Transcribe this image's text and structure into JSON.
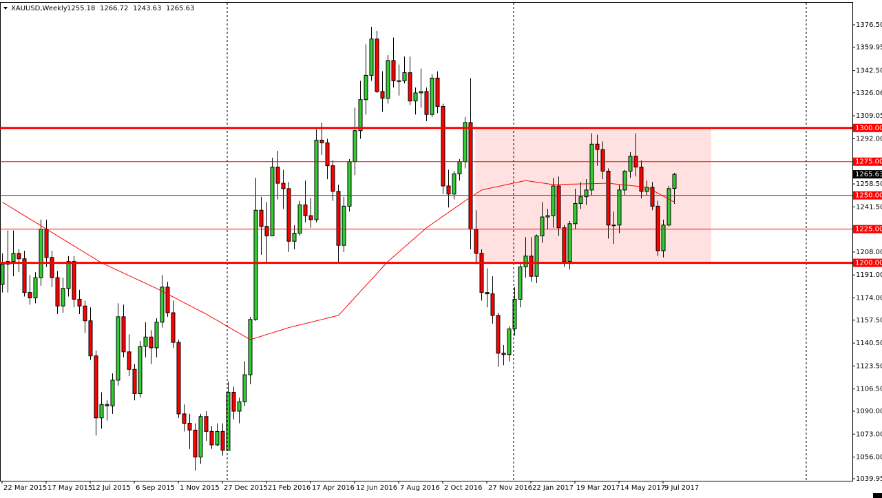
{
  "chart_data": {
    "type": "candlestick",
    "title": "XAUUSD,Weekly",
    "categories": [
      "22 Mar 2015",
      null,
      null,
      null,
      null,
      null,
      null,
      null,
      "17 May 2015",
      null,
      null,
      null,
      null,
      null,
      null,
      null,
      "12 Jul 2015",
      null,
      null,
      null,
      null,
      null,
      null,
      null,
      "6 Sep 2015",
      null,
      null,
      null,
      null,
      null,
      null,
      null,
      "1 Nov 2015",
      null,
      null,
      null,
      null,
      null,
      null,
      null,
      "27 Dec 2015",
      null,
      null,
      null,
      null,
      null,
      null,
      null,
      "21 Feb 2016",
      null,
      null,
      null,
      null,
      null,
      null,
      null,
      "17 Apr 2016",
      null,
      null,
      null,
      null,
      null,
      null,
      null,
      "12 Jun 2016",
      null,
      null,
      null,
      null,
      null,
      null,
      null,
      "7 Aug 2016",
      null,
      null,
      null,
      null,
      null,
      null,
      null,
      "2 Oct 2016",
      null,
      null,
      null,
      null,
      null,
      null,
      null,
      "27 Nov 2016",
      null,
      null,
      null,
      null,
      null,
      null,
      null,
      "22 Jan 2017",
      null,
      null,
      null,
      null,
      null,
      null,
      null,
      "19 Mar 2017",
      null,
      null,
      null,
      null,
      null,
      null,
      null,
      "14 May 2017",
      null,
      null,
      null,
      null,
      null,
      null,
      null,
      "9 Jul 2017",
      null,
      null
    ],
    "open": [
      1184,
      1199,
      1201,
      1207,
      1203,
      1178,
      1174,
      1189,
      1225,
      1204,
      1189,
      1168,
      1181,
      1201,
      1173,
      1168,
      1157,
      1131,
      1085,
      1095,
      1094,
      1113,
      1160,
      1134,
      1121,
      1103,
      1138,
      1145,
      1137,
      1156,
      1182,
      1163,
      1141,
      1088,
      1081,
      1076,
      1056,
      1086,
      1075,
      1065,
      1075,
      1061,
      1104,
      1090,
      1097,
      1117,
      1158,
      1239,
      1227,
      1220,
      1271,
      1259,
      1255,
      1216,
      1222,
      1243,
      1235,
      1232,
      1291,
      1289,
      1272,
      1253,
      1213,
      1242,
      1275,
      1298,
      1321,
      1339,
      1366,
      1327,
      1322,
      1350,
      1335,
      1335,
      1341,
      1320,
      1326,
      1327,
      1310,
      1337,
      1316,
      1257,
      1251,
      1266,
      1275,
      1304,
      1225,
      1207,
      1178,
      1177,
      1161,
      1133,
      1132,
      1151,
      1173,
      1197,
      1205,
      1190,
      1220,
      1234,
      1235,
      1257,
      1226,
      1201,
      1229,
      1244,
      1249,
      1254,
      1288,
      1284,
      1268,
      1228,
      1228,
      1254,
      1268,
      1279,
      1271,
      1253,
      1256,
      1242,
      1209,
      1228,
      1255.18
    ],
    "high": [
      1207,
      1224,
      1224,
      1210,
      1209,
      1191,
      1193,
      1232,
      1232,
      1209,
      1194,
      1189,
      1205,
      1205,
      1180,
      1172,
      1167,
      1135,
      1104,
      1098,
      1118,
      1170,
      1169,
      1147,
      1125,
      1142,
      1156,
      1150,
      1159,
      1191,
      1186,
      1172,
      1143,
      1095,
      1088,
      1081,
      1088,
      1090,
      1079,
      1081,
      1081,
      1112,
      1108,
      1100,
      1127,
      1160,
      1263,
      1249,
      1245,
      1278,
      1283,
      1269,
      1260,
      1228,
      1246,
      1261,
      1248,
      1299,
      1304,
      1292,
      1276,
      1258,
      1249,
      1277,
      1315,
      1335,
      1362,
      1375,
      1372,
      1342,
      1354,
      1367,
      1347,
      1353,
      1353,
      1330,
      1344,
      1330,
      1340,
      1342,
      1318,
      1269,
      1268,
      1277,
      1308,
      1337,
      1239,
      1210,
      1196,
      1190,
      1163,
      1139,
      1153,
      1182,
      1200,
      1219,
      1219,
      1221,
      1245,
      1240,
      1263,
      1264,
      1228,
      1231,
      1255,
      1260,
      1262,
      1296,
      1295,
      1290,
      1270,
      1238,
      1258,
      1269,
      1282,
      1296,
      1276,
      1261,
      1260,
      1246,
      1232,
      1257,
      1266.72
    ],
    "low": [
      1178,
      1178,
      1190,
      1193,
      1175,
      1169,
      1170,
      1183,
      1197,
      1182,
      1162,
      1163,
      1175,
      1167,
      1162,
      1148,
      1128,
      1072,
      1077,
      1083,
      1088,
      1109,
      1130,
      1116,
      1098,
      1100,
      1130,
      1125,
      1130,
      1152,
      1160,
      1137,
      1085,
      1075,
      1062,
      1046,
      1051,
      1068,
      1062,
      1064,
      1057,
      1061,
      1084,
      1081,
      1094,
      1110,
      1157,
      1206,
      1200,
      1220,
      1247,
      1240,
      1208,
      1210,
      1220,
      1230,
      1226,
      1230,
      1280,
      1262,
      1246,
      1200,
      1208,
      1238,
      1265,
      1292,
      1310,
      1335,
      1326,
      1312,
      1318,
      1330,
      1324,
      1333,
      1317,
      1310,
      1315,
      1305,
      1308,
      1311,
      1251,
      1241,
      1247,
      1261,
      1270,
      1210,
      1199,
      1172,
      1167,
      1155,
      1123,
      1124,
      1127,
      1146,
      1167,
      1189,
      1186,
      1185,
      1215,
      1225,
      1226,
      1220,
      1197,
      1195,
      1225,
      1240,
      1243,
      1250,
      1272,
      1262,
      1218,
      1214,
      1222,
      1250,
      1263,
      1264,
      1248,
      1250,
      1239,
      1205,
      1204,
      1227,
      1243.63
    ],
    "close": [
      1199,
      1201,
      1207,
      1203,
      1178,
      1174,
      1189,
      1225,
      1204,
      1189,
      1168,
      1181,
      1201,
      1173,
      1168,
      1157,
      1131,
      1085,
      1095,
      1094,
      1113,
      1160,
      1134,
      1121,
      1103,
      1138,
      1145,
      1137,
      1156,
      1182,
      1163,
      1141,
      1088,
      1081,
      1076,
      1056,
      1086,
      1075,
      1065,
      1075,
      1061,
      1104,
      1090,
      1097,
      1117,
      1158,
      1239,
      1227,
      1220,
      1271,
      1259,
      1255,
      1216,
      1222,
      1243,
      1235,
      1232,
      1291,
      1289,
      1272,
      1253,
      1213,
      1242,
      1275,
      1298,
      1321,
      1339,
      1366,
      1327,
      1322,
      1350,
      1335,
      1335,
      1341,
      1320,
      1326,
      1327,
      1310,
      1337,
      1316,
      1257,
      1251,
      1266,
      1275,
      1304,
      1225,
      1207,
      1178,
      1177,
      1161,
      1133,
      1132,
      1151,
      1173,
      1197,
      1205,
      1190,
      1220,
      1234,
      1235,
      1257,
      1226,
      1201,
      1229,
      1244,
      1249,
      1254,
      1288,
      1284,
      1268,
      1228,
      1228,
      1254,
      1268,
      1279,
      1271,
      1253,
      1256,
      1242,
      1209,
      1228,
      1255,
      1265.63
    ],
    "ma": [
      1245,
      1242.5,
      1240,
      1237.5,
      1235,
      1232.5,
      1230,
      1227.5,
      1225,
      1222.5,
      1220,
      1217.5,
      1215,
      1212.5,
      1210,
      1207.5,
      1205,
      1202.5,
      1200,
      1198.1,
      1196.2,
      1194.3,
      1192.4,
      1190.5,
      1188.6,
      1186.7,
      1184.8,
      1182.9,
      1181,
      1178.9,
      1176.8,
      1174.7,
      1172.6,
      1170.4,
      1168.3,
      1166.2,
      1164.1,
      1162,
      1159.6,
      1157.3,
      1154.9,
      1152.5,
      1150.1,
      1147.8,
      1145.4,
      1143,
      1144.3,
      1145.6,
      1146.9,
      1148.1,
      1149.4,
      1150.7,
      1152,
      1153,
      1154,
      1155,
      1156,
      1157,
      1158,
      1159,
      1160,
      1161,
      1165.4,
      1169.9,
      1174.3,
      1178.8,
      1183.2,
      1187.7,
      1192.1,
      1196.6,
      1201,
      1204.6,
      1208.1,
      1211.7,
      1215.3,
      1218.9,
      1222.4,
      1226,
      1228.9,
      1231.7,
      1234.6,
      1237.4,
      1240.3,
      1243.1,
      1246,
      1248.7,
      1251.3,
      1254,
      1254.9,
      1255.8,
      1256.6,
      1257.5,
      1258.4,
      1259.3,
      1260.1,
      1261,
      1260.4,
      1259.8,
      1259.2,
      1258.6,
      1258,
      1258.1,
      1258.2,
      1258.3,
      1258.4,
      1258.5,
      1258.6,
      1258.7,
      1258.8,
      1258.9,
      1259,
      1258.6,
      1258.1,
      1257.7,
      1257.3,
      1256.9,
      1256.4,
      1256,
      1253.8,
      1251.6,
      1249.4,
      1247.2,
      1245
    ],
    "up_color": "#32cd32",
    "down_color": "#ff0000",
    "ma_color": "#ff0000",
    "level_color": "#ff0000",
    "zone_color": "#ffe1e1",
    "ylim": [
      1038.4,
      1393.35
    ],
    "yticks": [
      {
        "value": 1376.5,
        "label": "1376.50"
      },
      {
        "value": 1359.95,
        "label": "1359.95"
      },
      {
        "value": 1342.5,
        "label": "1342.50"
      },
      {
        "value": 1326.06,
        "label": "1326.06"
      },
      {
        "value": 1309.05,
        "label": "1309.05"
      },
      {
        "value": 1292,
        "label": "1292.00"
      },
      {
        "value": 1258.5,
        "label": "1258.50"
      },
      {
        "value": 1241.5,
        "label": "1241.50"
      },
      {
        "value": 1208,
        "label": "1208.00"
      },
      {
        "value": 1191,
        "label": "1191.00"
      },
      {
        "value": 1174,
        "label": "1174.00"
      },
      {
        "value": 1157.5,
        "label": "1157.50"
      },
      {
        "value": 1140.5,
        "label": "1140.50"
      },
      {
        "value": 1123.5,
        "label": "1123.50"
      },
      {
        "value": 1106.5,
        "label": "1106.50"
      },
      {
        "value": 1090,
        "label": "1090.00"
      },
      {
        "value": 1073,
        "label": "1073.00"
      },
      {
        "value": 1056,
        "label": "1056.00"
      },
      {
        "value": 1039.95,
        "label": "1039.95"
      }
    ],
    "levels": [
      {
        "value": 1300,
        "label": "1300.00",
        "thick": true
      },
      {
        "value": 1275,
        "label": "1275.00",
        "thick": false
      },
      {
        "value": 1250,
        "label": "1250.00",
        "thick": false
      },
      {
        "value": 1225,
        "label": "1225.00",
        "thick": false
      },
      {
        "value": 1200,
        "label": "1200.00",
        "thick": true
      }
    ],
    "zone": [
      1200,
      1300
    ]
  }
}
